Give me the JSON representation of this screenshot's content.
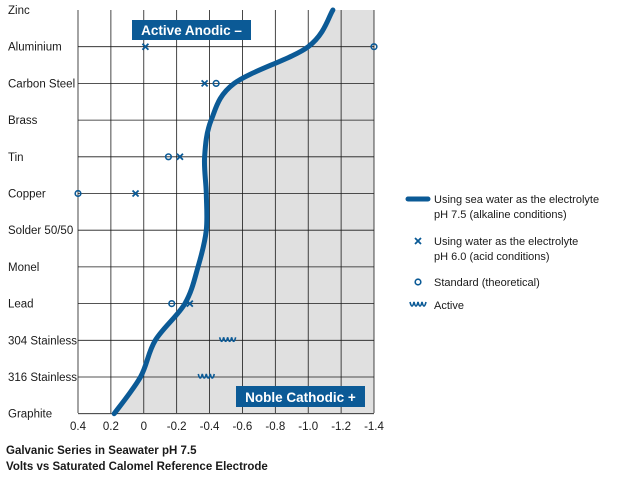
{
  "chart_data": {
    "type": "scatter",
    "title": "Galvanic Series in Seawater pH 7.5",
    "subtitle": "Volts vs Saturated Calomel Reference Electrode",
    "categories": [
      "Zinc",
      "Aluminium",
      "Carbon Steel",
      "Brass",
      "Tin",
      "Copper",
      "Solder 50/50",
      "Monel",
      "Lead",
      "304 Stainless",
      "316 Stainless",
      "Graphite"
    ],
    "x_ticks": [
      0.4,
      0.2,
      0,
      -0.2,
      -0.4,
      -0.6,
      -0.8,
      -1.0,
      -1.2,
      -1.4
    ],
    "x_tick_labels": [
      "0.4",
      "0.2",
      "0",
      "-0.2",
      "-0.4",
      "-0.6",
      "-0.8",
      "-1.0",
      "-1.2",
      "-1.4"
    ],
    "xlim": [
      0.4,
      -1.4
    ],
    "grid": true,
    "legend_position": "right",
    "series": [
      {
        "name": "Using sea water as the electrolyte pH 7.5 (alkaline conditions)",
        "legend_lines": [
          "Using sea water as the electrolyte",
          "pH 7.5 (alkaline conditions)"
        ],
        "kind": "curve",
        "color": "#0b5a96",
        "points": [
          {
            "x": -1.15,
            "y": "Zinc"
          },
          {
            "x": -1.0,
            "y": "Aluminium"
          },
          {
            "x": -0.55,
            "y": "Carbon Steel"
          },
          {
            "x": -0.41,
            "y": "Brass"
          },
          {
            "x": -0.37,
            "y": "Tin"
          },
          {
            "x": -0.38,
            "y": "Copper"
          },
          {
            "x": -0.38,
            "y": "Solder 50/50"
          },
          {
            "x": -0.33,
            "y": "Monel"
          },
          {
            "x": -0.25,
            "y": "Lead"
          },
          {
            "x": -0.07,
            "y": "304 Stainless"
          },
          {
            "x": 0.02,
            "y": "316 Stainless"
          },
          {
            "x": 0.18,
            "y": "Graphite"
          }
        ]
      },
      {
        "name": "Using water as the electrolyte pH 6.0 (acid conditions)",
        "legend_lines": [
          "Using water as the electrolyte",
          "pH 6.0 (acid conditions)"
        ],
        "kind": "cross",
        "color": "#0b5a96",
        "points": [
          {
            "x": -0.01,
            "y": "Aluminium"
          },
          {
            "x": -0.37,
            "y": "Carbon Steel"
          },
          {
            "x": -0.22,
            "y": "Tin"
          },
          {
            "x": 0.05,
            "y": "Copper"
          },
          {
            "x": -0.28,
            "y": "Lead"
          }
        ]
      },
      {
        "name": "Standard (theoretical)",
        "legend_lines": [
          "Standard (theoretical)"
        ],
        "kind": "circle",
        "color": "#0b5a96",
        "points": [
          {
            "x": -1.4,
            "y": "Aluminium"
          },
          {
            "x": -0.44,
            "y": "Carbon Steel"
          },
          {
            "x": -0.15,
            "y": "Tin"
          },
          {
            "x": 0.4,
            "y": "Copper"
          },
          {
            "x": -0.17,
            "y": "Lead"
          }
        ]
      },
      {
        "name": "Active",
        "legend_lines": [
          "Active"
        ],
        "kind": "wave",
        "color": "#0b5a96",
        "points": [
          {
            "x": -0.51,
            "y": "304 Stainless"
          },
          {
            "x": -0.38,
            "y": "316 Stainless"
          }
        ]
      }
    ],
    "annotations": [
      {
        "text": "Active Anodic –",
        "position": "top-center"
      },
      {
        "text": "Noble Cathodic +",
        "position": "bottom-right"
      }
    ]
  },
  "colors": {
    "curve": "#0b5a96",
    "banner": "#0b5a96",
    "shade": "#e0e0e0",
    "grid": "#1a1a1a"
  }
}
